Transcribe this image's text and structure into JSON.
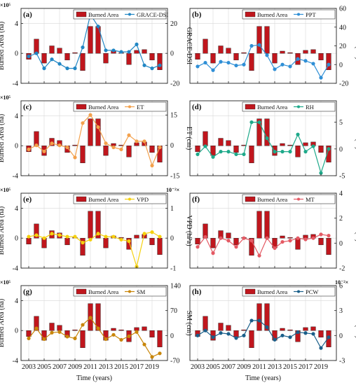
{
  "figure": {
    "x_axis_label": "Time (years)",
    "x_ticks": [
      "2003",
      "2005",
      "2007",
      "2009",
      "2011",
      "2013",
      "2015",
      "2017",
      "2019"
    ],
    "left_axis_label": "Burned Area (ha)",
    "left_exponent": "×10⁵",
    "burned_area_legend": "Burned Area",
    "burned_area_color": "#c0161d"
  },
  "chart_data": [
    {
      "type": "bar",
      "panel": "(a)",
      "legend_position": "top-right",
      "x": [
        2003,
        2004,
        2005,
        2006,
        2007,
        2008,
        2009,
        2010,
        2011,
        2012,
        2013,
        2014,
        2015,
        2016,
        2017,
        2018,
        2019,
        2020
      ],
      "left_axis": {
        "label": "Burned Area (ha)",
        "ticks": [
          "-4",
          "0",
          "4"
        ],
        "ylim": [
          -4,
          6
        ],
        "exponent": "×10⁵"
      },
      "right_axis": {
        "label": "GRACE-DSI",
        "ticks": [
          "-20",
          "0",
          "20"
        ],
        "ylim": [
          -20,
          30
        ]
      },
      "series": [
        {
          "name": "Burned Area",
          "type": "bar",
          "axis": "left",
          "color": "#c0161d",
          "values": [
            -0.8,
            1.9,
            -1.3,
            1.0,
            0.7,
            -0.9,
            0.1,
            -2.3,
            3.6,
            3.6,
            -1.3,
            0.3,
            0.1,
            -1.5,
            0.4,
            0.5,
            -0.9,
            -2.2
          ]
        },
        {
          "name": "GRACE-DSI",
          "type": "line",
          "axis": "right",
          "color": "#2186c4",
          "values": [
            -2,
            0,
            -10,
            -4,
            -7,
            -10,
            -10,
            4,
            26,
            18,
            2,
            2,
            1,
            1,
            6,
            -8,
            -10,
            -8
          ]
        }
      ]
    },
    {
      "type": "bar",
      "panel": "(b)",
      "legend_position": "top-right",
      "x": [
        2003,
        2004,
        2005,
        2006,
        2007,
        2008,
        2009,
        2010,
        2011,
        2012,
        2013,
        2014,
        2015,
        2016,
        2017,
        2018,
        2019,
        2020
      ],
      "left_axis": {
        "label": "",
        "ticks": [],
        "ylim": [
          -4,
          6
        ],
        "exponent": ""
      },
      "right_axis": {
        "label": "PPT (cm)",
        "ticks": [
          "-20",
          "0",
          "20",
          "40",
          "60"
        ],
        "ylim": [
          -20,
          60
        ]
      },
      "series": [
        {
          "name": "Burned Area",
          "type": "bar",
          "axis": "left",
          "color": "#c0161d",
          "values": [
            -0.8,
            1.9,
            -1.3,
            1.0,
            0.7,
            -0.9,
            0.1,
            -2.3,
            3.6,
            3.6,
            -1.3,
            0.3,
            0.1,
            -1.5,
            0.4,
            0.5,
            -0.9,
            -2.2
          ]
        },
        {
          "name": "PPT",
          "type": "line",
          "axis": "right",
          "color": "#2f8fd6",
          "values": [
            -2,
            2,
            -6,
            3,
            2,
            -1,
            0,
            20,
            21,
            10,
            -5,
            0,
            -2,
            6,
            4,
            1,
            -14,
            0
          ]
        }
      ]
    },
    {
      "type": "bar",
      "panel": "(c)",
      "legend_position": "top-right",
      "x": [
        2003,
        2004,
        2005,
        2006,
        2007,
        2008,
        2009,
        2010,
        2011,
        2012,
        2013,
        2014,
        2015,
        2016,
        2017,
        2018,
        2019,
        2020
      ],
      "left_axis": {
        "label": "Burned Area (ha)",
        "ticks": [
          "-4",
          "0",
          "4"
        ],
        "ylim": [
          -4,
          6
        ],
        "exponent": "×10⁵"
      },
      "right_axis": {
        "label": "ET (cm)",
        "ticks": [
          "-15",
          "0",
          "15"
        ],
        "ylim": [
          -15,
          22
        ]
      },
      "series": [
        {
          "name": "Burned Area",
          "type": "bar",
          "axis": "left",
          "color": "#c0161d",
          "values": [
            -0.8,
            1.9,
            -1.3,
            1.0,
            0.7,
            -0.9,
            0.1,
            -2.3,
            3.6,
            3.6,
            -1.3,
            0.3,
            0.1,
            -1.5,
            0.4,
            0.5,
            -0.9,
            -2.2
          ]
        },
        {
          "name": "ET",
          "type": "line",
          "axis": "right",
          "color": "#f3a14c",
          "values": [
            -2,
            0,
            -3,
            1,
            0,
            -1,
            -6,
            11,
            15,
            9,
            1,
            -1,
            -2,
            5,
            2,
            2,
            -10,
            -1
          ]
        }
      ]
    },
    {
      "type": "bar",
      "panel": "(d)",
      "legend_position": "top-right",
      "x": [
        2003,
        2004,
        2005,
        2006,
        2007,
        2008,
        2009,
        2010,
        2011,
        2012,
        2013,
        2014,
        2015,
        2016,
        2017,
        2018,
        2019,
        2020
      ],
      "left_axis": {
        "label": "",
        "ticks": [],
        "ylim": [
          -4,
          6
        ],
        "exponent": ""
      },
      "right_axis": {
        "label": "RH (%)",
        "ticks": [
          "-5",
          "0",
          "5"
        ],
        "ylim": [
          -5,
          9
        ]
      },
      "series": [
        {
          "name": "Burned Area",
          "type": "bar",
          "axis": "left",
          "color": "#c0161d",
          "values": [
            -0.8,
            1.9,
            -1.3,
            1.0,
            0.7,
            -0.9,
            0.1,
            -2.3,
            3.6,
            3.6,
            -1.3,
            0.3,
            0.1,
            -1.5,
            0.4,
            0.5,
            -0.9,
            -2.2
          ]
        },
        {
          "name": "RH",
          "type": "line",
          "axis": "right",
          "color": "#1ea98a",
          "values": [
            -1,
            0.5,
            -1.5,
            -0.5,
            -0.5,
            -1,
            -1,
            5,
            5,
            2,
            -0.5,
            -0.5,
            -0.5,
            2.7,
            -0.5,
            0.5,
            -4.5,
            0
          ]
        }
      ]
    },
    {
      "type": "bar",
      "panel": "(e)",
      "legend_position": "top-right",
      "x": [
        2003,
        2004,
        2005,
        2006,
        2007,
        2008,
        2009,
        2010,
        2011,
        2012,
        2013,
        2014,
        2015,
        2016,
        2017,
        2018,
        2019,
        2020
      ],
      "left_axis": {
        "label": "Burned Area (ha)",
        "ticks": [
          "-4",
          "0",
          "4"
        ],
        "ylim": [
          -4,
          6
        ],
        "exponent": "×10⁵"
      },
      "right_axis": {
        "label": "VPD (hPa)",
        "ticks": [
          "-1",
          "0",
          "1"
        ],
        "ylim": [
          -1,
          1.5
        ],
        "exponent": "10⁻²×"
      },
      "series": [
        {
          "name": "Burned Area",
          "type": "bar",
          "axis": "left",
          "color": "#c0161d",
          "values": [
            -0.8,
            1.9,
            -1.3,
            1.0,
            0.7,
            -0.9,
            0.1,
            -2.3,
            3.6,
            3.6,
            -1.3,
            0.3,
            0.1,
            -1.5,
            0.4,
            0.5,
            -0.9,
            -2.2
          ]
        },
        {
          "name": "VPD",
          "type": "line",
          "axis": "right",
          "color": "#f5d10f",
          "values": [
            0.05,
            0.1,
            0.0,
            0.15,
            0.1,
            0.05,
            0.05,
            -0.15,
            -0.05,
            0.15,
            0.05,
            0.05,
            -0.05,
            -0.1,
            -0.95,
            0.15,
            0.2,
            0.05
          ]
        }
      ]
    },
    {
      "type": "bar",
      "panel": "(f)",
      "legend_position": "top-right",
      "x": [
        2003,
        2004,
        2005,
        2006,
        2007,
        2008,
        2009,
        2010,
        2011,
        2012,
        2013,
        2014,
        2015,
        2016,
        2017,
        2018,
        2019,
        2020
      ],
      "left_axis": {
        "label": "",
        "ticks": [],
        "ylim": [
          -4,
          6
        ],
        "exponent": ""
      },
      "right_axis": {
        "label": "MT (K)",
        "ticks": [
          "-2",
          "0",
          "2",
          "4"
        ],
        "ylim": [
          -2,
          4
        ]
      },
      "series": [
        {
          "name": "Burned Area",
          "type": "bar",
          "axis": "left",
          "color": "#c0161d",
          "values": [
            -0.8,
            1.9,
            -1.3,
            1.0,
            0.7,
            -0.9,
            0.1,
            -2.3,
            3.6,
            3.6,
            -1.3,
            0.3,
            0.1,
            -1.5,
            0.4,
            0.5,
            -0.9,
            -2.2
          ]
        },
        {
          "name": "MT",
          "type": "line",
          "axis": "right",
          "color": "#e45a64",
          "values": [
            -0.3,
            0.5,
            -0.8,
            0.4,
            0.2,
            -0.3,
            0.4,
            0.2,
            -1.0,
            0.4,
            -0.4,
            0.1,
            0.2,
            0.4,
            0.3,
            0.4,
            0.7,
            0.6
          ]
        }
      ]
    },
    {
      "type": "bar",
      "panel": "(g)",
      "legend_position": "top-right",
      "x": [
        2003,
        2004,
        2005,
        2006,
        2007,
        2008,
        2009,
        2010,
        2011,
        2012,
        2013,
        2014,
        2015,
        2016,
        2017,
        2018,
        2019,
        2020
      ],
      "left_axis": {
        "label": "Burned Area (ha)",
        "ticks": [
          "-4",
          "0",
          "4"
        ],
        "ylim": [
          -4,
          6
        ],
        "exponent": "×10⁵"
      },
      "right_axis": {
        "label": "SM (cm)",
        "ticks": [
          "-70",
          "0",
          "70",
          "140"
        ],
        "ylim": [
          -70,
          140
        ]
      },
      "series": [
        {
          "name": "Burned Area",
          "type": "bar",
          "axis": "left",
          "color": "#c0161d",
          "values": [
            -0.8,
            1.9,
            -1.3,
            1.0,
            0.7,
            -0.9,
            0.1,
            -2.3,
            3.6,
            3.6,
            -1.3,
            0.3,
            0.1,
            -1.5,
            0.4,
            0.5,
            -0.9,
            -2.2
          ]
        },
        {
          "name": "SM",
          "type": "line",
          "axis": "right",
          "color": "#c8860a",
          "values": [
            -8,
            20,
            -10,
            8,
            10,
            -3,
            -8,
            30,
            50,
            20,
            -10,
            2,
            -12,
            -2,
            10,
            -25,
            -60,
            -50
          ]
        }
      ]
    },
    {
      "type": "bar",
      "panel": "(h)",
      "legend_position": "top-right",
      "x": [
        2003,
        2004,
        2005,
        2006,
        2007,
        2008,
        2009,
        2010,
        2011,
        2012,
        2013,
        2014,
        2015,
        2016,
        2017,
        2018,
        2019,
        2020
      ],
      "left_axis": {
        "label": "",
        "ticks": [],
        "ylim": [
          -4,
          6
        ],
        "exponent": ""
      },
      "right_axis": {
        "label": "PCW (cm)",
        "ticks": [
          "-3",
          "0",
          "3",
          "6"
        ],
        "ylim": [
          -3,
          6
        ],
        "exponent": "10⁻²×"
      },
      "series": [
        {
          "name": "Burned Area",
          "type": "bar",
          "axis": "left",
          "color": "#c0161d",
          "values": [
            -0.8,
            1.9,
            -1.3,
            1.0,
            0.7,
            -0.9,
            0.1,
            -2.3,
            3.6,
            3.6,
            -1.3,
            0.3,
            0.1,
            -1.5,
            0.4,
            0.5,
            -0.9,
            -2.2
          ]
        },
        {
          "name": "PCW",
          "type": "line",
          "axis": "right",
          "color": "#1a5f8a",
          "values": [
            0,
            0.6,
            -0.2,
            0.3,
            0.2,
            -0.3,
            0,
            1.8,
            1.8,
            1.0,
            -0.5,
            0,
            -0.2,
            0.4,
            0.3,
            0.2,
            -1.5,
            -0.2
          ]
        }
      ]
    }
  ]
}
